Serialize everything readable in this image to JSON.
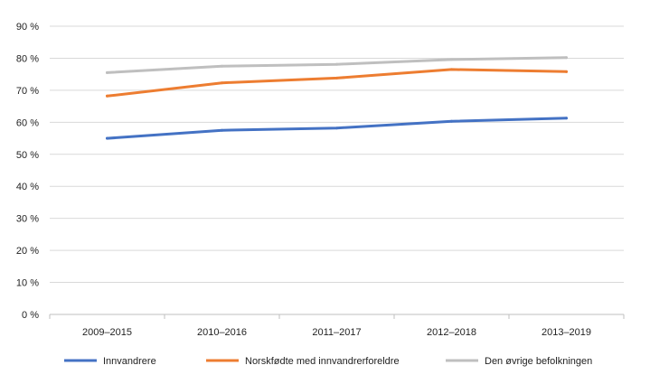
{
  "chart_data": {
    "type": "line",
    "title": "",
    "xlabel": "",
    "ylabel": "",
    "categories": [
      "2009–2015",
      "2010–2016",
      "2011–2017",
      "2012–2018",
      "2013–2019"
    ],
    "y_ticks": [
      "0 %",
      "10 %",
      "20 %",
      "30 %",
      "40 %",
      "50 %",
      "60 %",
      "70 %",
      "80 %",
      "90 %"
    ],
    "ylim": [
      0,
      90
    ],
    "y_unit": "%",
    "grid": true,
    "legend_position": "bottom",
    "series": [
      {
        "name": "Innvandrere",
        "color": "#4472c4",
        "values": [
          55,
          57.5,
          58.2,
          60.3,
          61.3
        ]
      },
      {
        "name": "Norskfødte med innvandrerforeldre",
        "color": "#ed7d31",
        "values": [
          68.2,
          72.3,
          73.8,
          76.5,
          75.8
        ]
      },
      {
        "name": "Den øvrige befolkningen",
        "color": "#bfbfbf",
        "values": [
          75.5,
          77.5,
          78.1,
          79.6,
          80.2
        ]
      }
    ]
  }
}
